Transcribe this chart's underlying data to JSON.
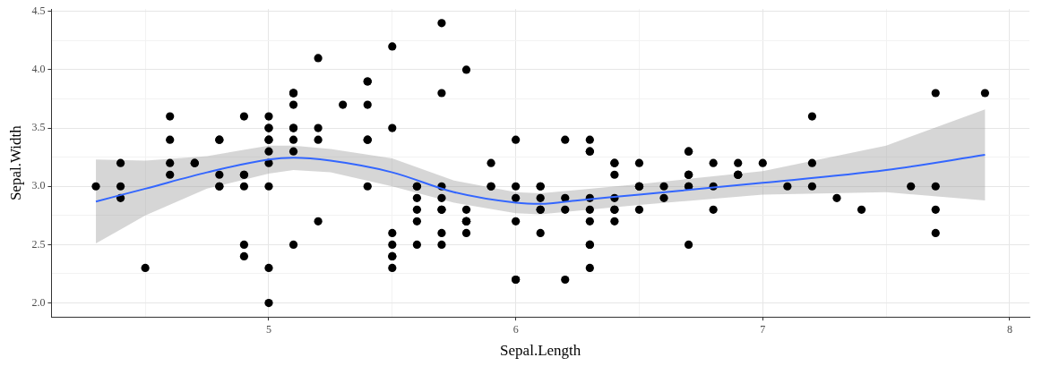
{
  "chart_data": {
    "type": "scatter",
    "xlabel": "Sepal.Length",
    "ylabel": "Sepal.Width",
    "xlim": [
      4.12,
      8.08
    ],
    "ylim": [
      1.88,
      4.52
    ],
    "xticks": [
      {
        "value": 4.5,
        "label": null
      },
      5,
      {
        "value": 5.5,
        "label": null
      },
      6,
      {
        "value": 6.5,
        "label": null
      },
      7,
      {
        "value": 7.5,
        "label": null
      },
      8
    ],
    "yticks": [
      "2.0",
      {
        "value": 2.25,
        "label": null
      },
      {
        "value": 2.5,
        "label": "2.5"
      },
      {
        "value": 2.75,
        "label": null
      },
      {
        "value": 3,
        "label": "3.0"
      },
      {
        "value": 3.25,
        "label": null
      },
      {
        "value": 3.5,
        "label": "3.5"
      },
      {
        "value": 3.75,
        "label": null
      },
      {
        "value": 4,
        "label": "4.0"
      },
      {
        "value": 4.25,
        "label": null
      },
      {
        "value": 4.5,
        "label": "4.5"
      }
    ],
    "grid": true,
    "legend": false,
    "marker": "circle",
    "series": [
      {
        "type": "scatter",
        "color": "#000000",
        "x": [
          5.1,
          4.9,
          4.7,
          4.6,
          5.0,
          5.4,
          4.6,
          5.0,
          4.4,
          4.9,
          5.4,
          4.8,
          4.8,
          4.3,
          5.8,
          5.7,
          5.4,
          5.1,
          5.7,
          5.1,
          5.4,
          5.1,
          4.6,
          5.1,
          4.8,
          5.0,
          5.0,
          5.2,
          5.2,
          4.7,
          4.8,
          5.4,
          5.2,
          5.5,
          4.9,
          5.0,
          5.5,
          4.9,
          4.4,
          5.1,
          5.0,
          4.5,
          4.4,
          5.0,
          5.1,
          4.8,
          5.1,
          4.6,
          5.3,
          5.0,
          7.0,
          6.4,
          6.9,
          5.5,
          6.5,
          5.7,
          6.3,
          4.9,
          6.6,
          5.2,
          5.0,
          5.9,
          6.0,
          6.1,
          5.6,
          6.7,
          5.6,
          5.8,
          6.2,
          5.6,
          5.9,
          6.1,
          6.3,
          6.1,
          6.4,
          6.6,
          6.8,
          6.7,
          6.0,
          5.7,
          5.5,
          5.5,
          5.8,
          6.0,
          5.4,
          6.0,
          6.7,
          6.3,
          5.6,
          5.5,
          5.5,
          6.1,
          5.8,
          5.0,
          5.6,
          5.7,
          5.7,
          6.2,
          5.1,
          5.7,
          6.3,
          5.8,
          7.1,
          6.3,
          6.5,
          7.6,
          4.9,
          7.3,
          6.7,
          7.2,
          6.5,
          6.4,
          6.8,
          5.7,
          5.8,
          6.4,
          6.5,
          7.7,
          7.7,
          6.0,
          6.9,
          5.6,
          7.7,
          6.3,
          6.7,
          7.2,
          6.2,
          6.1,
          6.4,
          7.2,
          7.4,
          7.9,
          6.4,
          6.3,
          6.1,
          7.7,
          6.3,
          6.4,
          6.0,
          6.9,
          6.7,
          6.9,
          5.8,
          6.8,
          6.7,
          6.7,
          6.3,
          6.5,
          6.2,
          5.9
        ],
        "values": [
          3.5,
          3.0,
          3.2,
          3.1,
          3.6,
          3.9,
          3.4,
          3.4,
          2.9,
          3.1,
          3.7,
          3.4,
          3.0,
          3.0,
          4.0,
          4.4,
          3.9,
          3.5,
          3.8,
          3.8,
          3.4,
          3.7,
          3.6,
          3.3,
          3.4,
          3.0,
          3.4,
          3.5,
          3.4,
          3.2,
          3.1,
          3.4,
          4.1,
          4.2,
          3.1,
          3.2,
          3.5,
          3.6,
          3.0,
          3.4,
          3.5,
          2.3,
          3.2,
          3.5,
          3.8,
          3.0,
          3.8,
          3.2,
          3.7,
          3.3,
          3.2,
          3.2,
          3.1,
          2.3,
          2.8,
          2.8,
          3.3,
          2.4,
          2.9,
          2.7,
          2.0,
          3.0,
          2.2,
          2.9,
          2.9,
          3.1,
          3.0,
          2.7,
          2.2,
          2.5,
          3.2,
          2.8,
          2.5,
          2.8,
          2.9,
          3.0,
          2.8,
          3.0,
          2.9,
          2.6,
          2.4,
          2.4,
          2.7,
          2.7,
          3.0,
          3.4,
          3.1,
          2.3,
          3.0,
          2.5,
          2.6,
          3.0,
          2.6,
          2.3,
          2.7,
          3.0,
          2.9,
          2.9,
          2.5,
          2.8,
          3.3,
          2.7,
          3.0,
          2.9,
          3.0,
          3.0,
          2.5,
          2.9,
          2.5,
          3.6,
          3.2,
          2.7,
          3.0,
          2.5,
          2.8,
          3.2,
          3.0,
          3.8,
          2.6,
          2.2,
          3.2,
          2.8,
          2.8,
          2.7,
          3.3,
          3.2,
          2.8,
          3.0,
          2.8,
          3.0,
          2.8,
          3.8,
          2.8,
          2.8,
          2.6,
          3.0,
          3.4,
          3.1,
          3.0,
          3.1,
          3.1,
          3.1,
          2.7,
          3.2,
          3.3,
          3.0,
          2.5,
          3.0,
          3.4,
          3.0
        ]
      },
      {
        "type": "line",
        "color": "#3366ff",
        "marker": "none",
        "x": [
          4.3,
          4.5,
          4.75,
          5.0,
          5.1,
          5.25,
          5.5,
          5.75,
          6.0,
          6.1,
          6.25,
          6.5,
          7.0,
          7.5,
          7.9
        ],
        "values": [
          2.87,
          2.98,
          3.12,
          3.23,
          3.245,
          3.22,
          3.12,
          2.95,
          2.86,
          2.85,
          2.88,
          2.93,
          3.03,
          3.14,
          3.27
        ],
        "lower": [
          2.51,
          2.75,
          2.98,
          3.11,
          3.14,
          3.12,
          3.0,
          2.86,
          2.77,
          2.76,
          2.79,
          2.84,
          2.93,
          2.95,
          2.88
        ],
        "upper": [
          3.23,
          3.22,
          3.26,
          3.35,
          3.35,
          3.32,
          3.24,
          3.05,
          2.95,
          2.94,
          2.97,
          3.02,
          3.13,
          3.35,
          3.66
        ]
      }
    ]
  }
}
